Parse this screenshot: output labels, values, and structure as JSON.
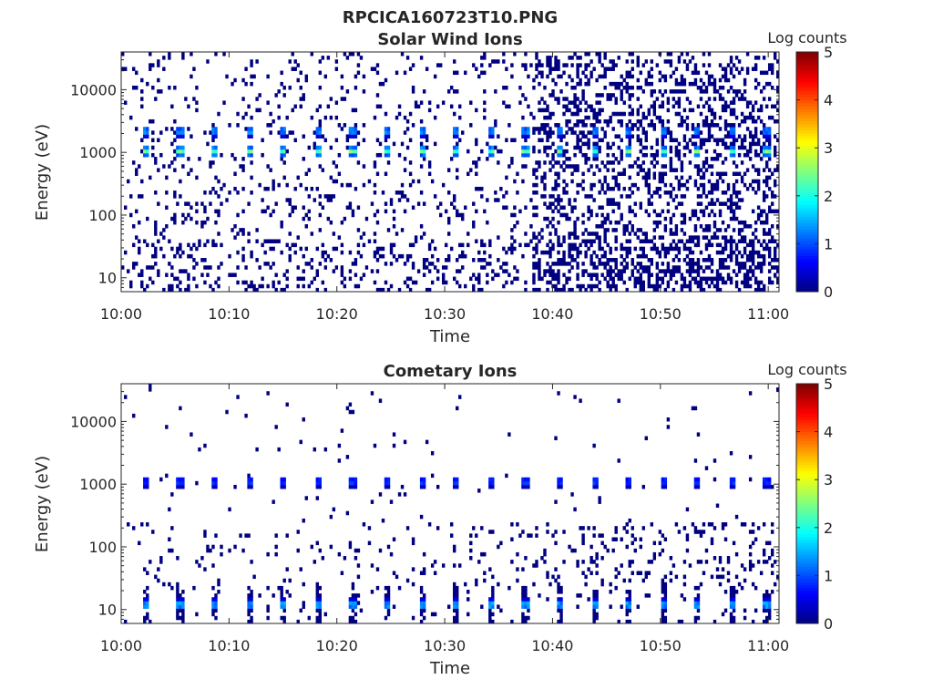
{
  "figure_title": "RPCICA160723T10.PNG",
  "colorbar": {
    "label": "Log counts",
    "range": [
      0,
      5
    ],
    "ticks": [
      0,
      1,
      2,
      3,
      4,
      5
    ],
    "tick_labels": [
      "0",
      "1",
      "2",
      "3",
      "4",
      "5"
    ],
    "colormap": "jet"
  },
  "chart_data": [
    {
      "type": "heatmap",
      "title": "Solar Wind Ions",
      "xlabel": "Time",
      "ylabel": "Energy (eV)",
      "x_range": [
        "10:00",
        "11:01"
      ],
      "x_ticks": [
        "10:00",
        "10:10",
        "10:20",
        "10:30",
        "10:40",
        "10:50",
        "11:00"
      ],
      "y_scale": "log",
      "y_range": [
        6,
        40000
      ],
      "y_ticks": [
        10,
        100,
        1000,
        10000
      ],
      "y_tick_labels": [
        "10",
        "100",
        "1000",
        "10000"
      ],
      "value_label": "Log counts",
      "value_range": [
        0,
        5
      ],
      "features": [
        {
          "description": "periodic peaks near 1000 eV",
          "energy_eV": 1050,
          "peak_log_counts": 2.7,
          "period_min": 3.2
        },
        {
          "description": "secondary periodic peaks near 2200 eV",
          "energy_eV": 2200,
          "peak_log_counts": 1.8
        },
        {
          "description": "scattered single counts",
          "energy_range_eV": [
            6,
            40000
          ],
          "log_counts": 0
        }
      ]
    },
    {
      "type": "heatmap",
      "title": "Cometary Ions",
      "xlabel": "Time",
      "ylabel": "Energy (eV)",
      "x_range": [
        "10:00",
        "11:01"
      ],
      "x_ticks": [
        "10:00",
        "10:10",
        "10:20",
        "10:30",
        "10:40",
        "10:50",
        "11:00"
      ],
      "y_scale": "log",
      "y_range": [
        6,
        40000
      ],
      "y_ticks": [
        10,
        100,
        1000,
        10000
      ],
      "y_tick_labels": [
        "10",
        "100",
        "1000",
        "10000"
      ],
      "value_label": "Log counts",
      "value_range": [
        0,
        5
      ],
      "features": [
        {
          "description": "periodic low-energy peaks near 12 eV",
          "energy_eV": 12,
          "peak_log_counts": 2.0,
          "period_min": 3.2
        },
        {
          "description": "weak periodic peaks near 1100 eV",
          "energy_eV": 1100,
          "peak_log_counts": 1.2
        },
        {
          "description": "scattered single counts",
          "energy_range_eV": [
            6,
            40000
          ],
          "log_counts": 0
        }
      ]
    }
  ]
}
